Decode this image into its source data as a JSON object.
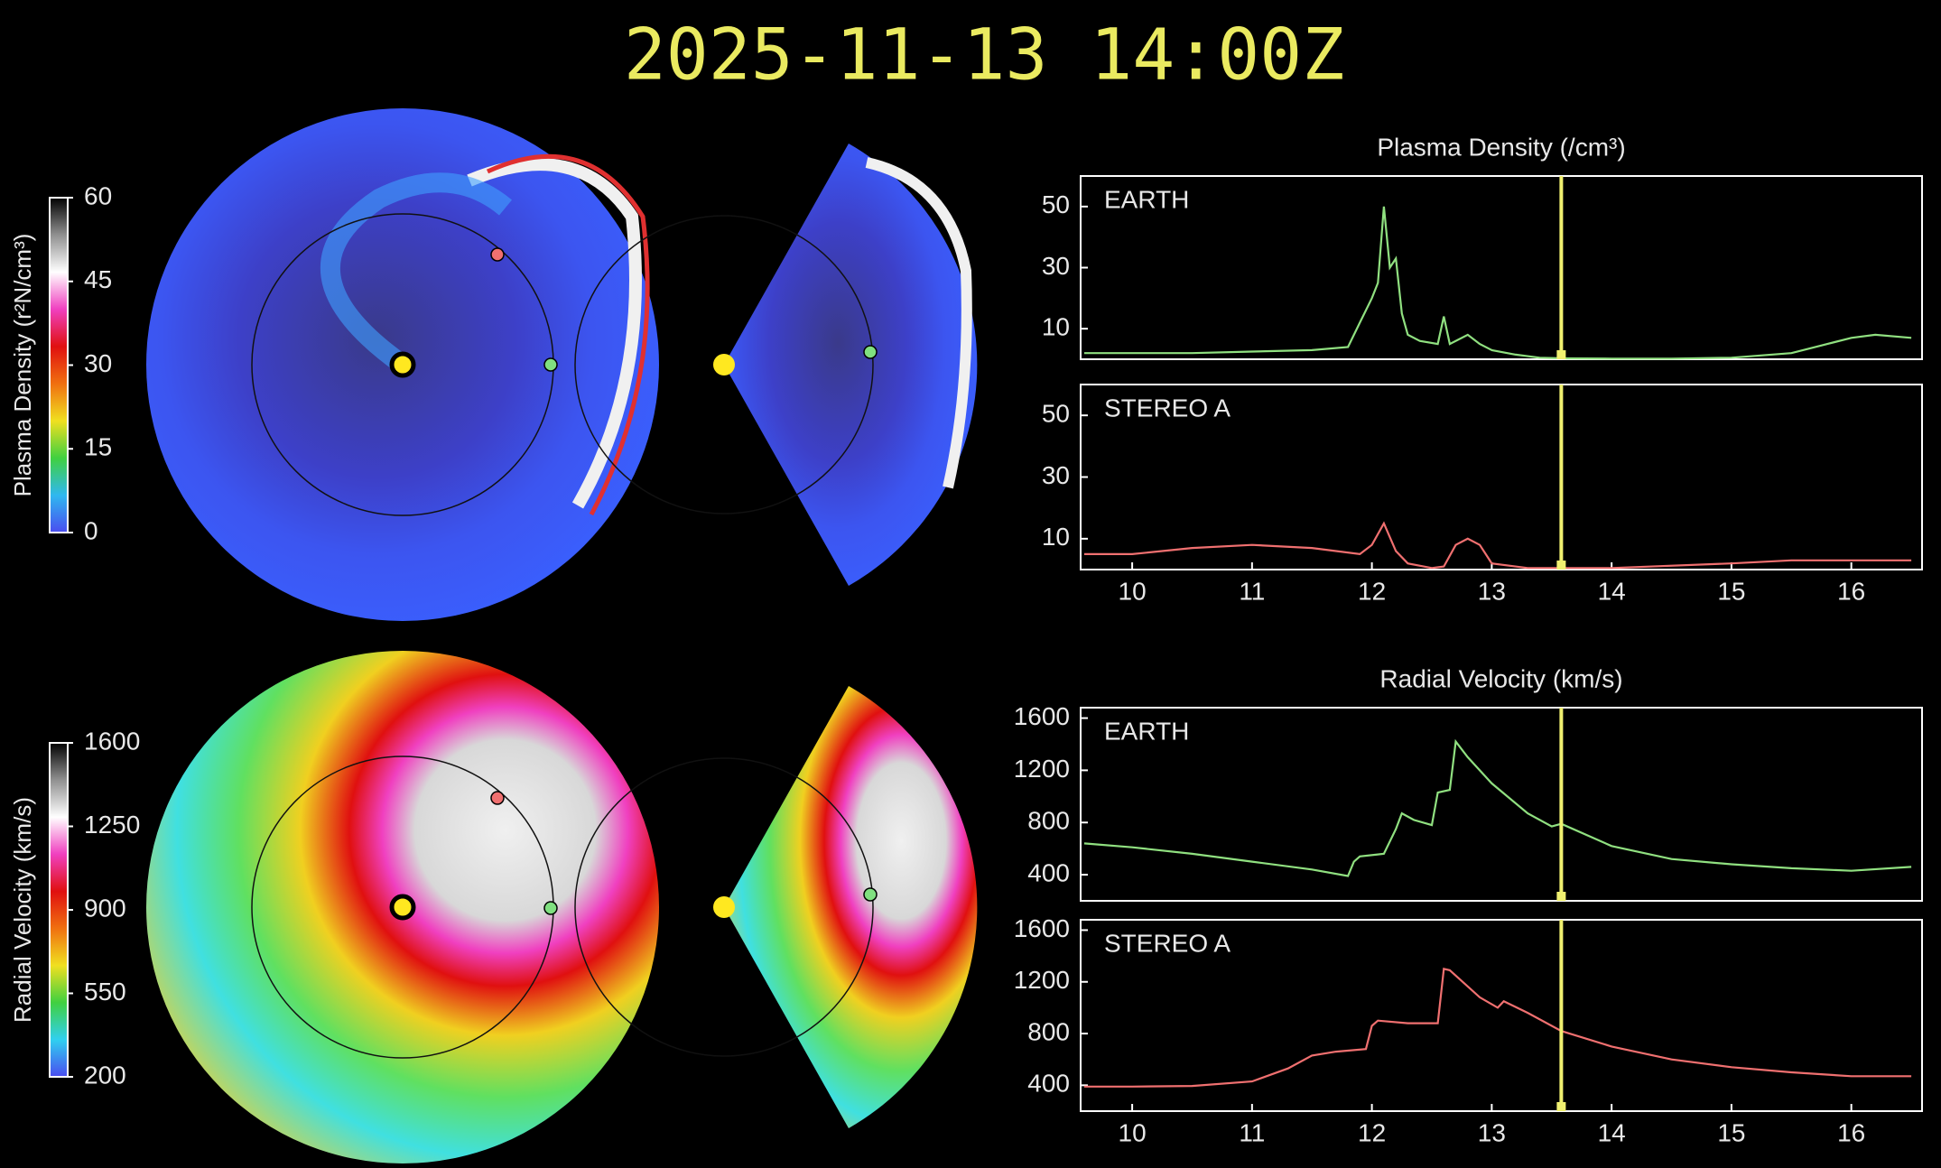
{
  "title": "2025-11-13 14:00Z",
  "chart_data": [
    {
      "type": "colorbar",
      "label": "Plasma Density (r²N/cm³)",
      "ylim": [
        0,
        60
      ],
      "yticks": [
        0,
        15,
        30,
        45,
        60
      ],
      "colors": [
        "#4a4cf0",
        "#2fb8f0",
        "#40d040",
        "#f0e020",
        "#f07010",
        "#e01010",
        "#f040c0",
        "#ffffff",
        "#909090",
        "#000000"
      ]
    },
    {
      "type": "colorbar",
      "label": "Radial Velocity (km/s)",
      "ylim": [
        200,
        1600
      ],
      "yticks": [
        200,
        550,
        900,
        1250,
        1600
      ],
      "colors": [
        "#4a4cf0",
        "#30d0f0",
        "#40d040",
        "#f0e020",
        "#f07010",
        "#e01010",
        "#f040c0",
        "#ffffff",
        "#909090",
        "#000000"
      ]
    },
    {
      "type": "line",
      "title": "Plasma Density (/cm³)",
      "xlim": [
        9.57,
        16.59
      ],
      "ylim": [
        0,
        60
      ],
      "yticks": [
        10,
        30,
        50
      ],
      "marker_x": 13.58,
      "x": [
        9.6,
        10,
        10.5,
        11,
        11.5,
        11.8,
        11.9,
        12.0,
        12.05,
        12.1,
        12.15,
        12.2,
        12.25,
        12.3,
        12.4,
        12.55,
        12.6,
        12.65,
        12.8,
        12.9,
        13.0,
        13.2,
        13.4,
        13.6,
        14,
        14.5,
        15,
        15.5,
        16,
        16.2,
        16.5
      ],
      "series": [
        {
          "name": "EARTH",
          "color": "#90e080",
          "values": [
            2,
            2,
            2,
            2.5,
            3,
            4,
            12,
            20,
            25,
            50,
            30,
            33,
            15,
            8,
            6,
            5,
            14,
            5,
            8,
            5,
            3,
            1.5,
            0.5,
            0.3,
            0.2,
            0.2,
            0.5,
            2,
            7,
            8,
            7
          ]
        }
      ]
    },
    {
      "type": "line",
      "xlim": [
        9.57,
        16.59
      ],
      "ylim": [
        0,
        60
      ],
      "yticks": [
        10,
        30,
        50
      ],
      "xticks": [
        10,
        11,
        12,
        13,
        14,
        15,
        16
      ],
      "marker_x": 13.58,
      "x": [
        9.6,
        10,
        10.5,
        11,
        11.5,
        11.9,
        12.0,
        12.1,
        12.2,
        12.3,
        12.5,
        12.6,
        12.7,
        12.8,
        12.9,
        13.0,
        13.3,
        14,
        15,
        15.5,
        16,
        16.5
      ],
      "series": [
        {
          "name": "STEREO A",
          "color": "#f07070",
          "values": [
            5,
            5,
            7,
            8,
            7,
            5,
            8,
            15,
            6,
            2,
            0.5,
            1,
            8,
            10,
            8,
            2,
            0.5,
            0.5,
            2,
            3,
            3,
            3
          ]
        }
      ]
    },
    {
      "type": "line",
      "title": "Radial Velocity (km/s)",
      "xlim": [
        9.57,
        16.59
      ],
      "ylim": [
        200,
        1680
      ],
      "yticks": [
        400,
        800,
        1200,
        1600
      ],
      "marker_x": 13.58,
      "x": [
        9.6,
        10,
        10.5,
        11,
        11.5,
        11.8,
        11.85,
        11.9,
        12.1,
        12.2,
        12.25,
        12.35,
        12.5,
        12.55,
        12.65,
        12.7,
        12.8,
        13,
        13.3,
        13.5,
        13.58,
        14,
        14.5,
        15,
        15.5,
        16,
        16.5
      ],
      "series": [
        {
          "name": "EARTH",
          "color": "#90e080",
          "values": [
            640,
            610,
            560,
            500,
            440,
            390,
            500,
            540,
            560,
            750,
            870,
            820,
            780,
            1030,
            1050,
            1420,
            1300,
            1100,
            870,
            770,
            790,
            620,
            520,
            480,
            450,
            430,
            460
          ]
        }
      ]
    },
    {
      "type": "line",
      "xlim": [
        9.57,
        16.59
      ],
      "ylim": [
        200,
        1680
      ],
      "yticks": [
        400,
        800,
        1200,
        1600
      ],
      "xticks": [
        10,
        11,
        12,
        13,
        14,
        15,
        16
      ],
      "marker_x": 13.58,
      "x": [
        9.6,
        10,
        10.5,
        11,
        11.3,
        11.5,
        11.7,
        11.95,
        12.0,
        12.05,
        12.3,
        12.55,
        12.6,
        12.65,
        12.9,
        13.05,
        13.1,
        13.3,
        13.58,
        14,
        14.5,
        15,
        15.5,
        16,
        16.5
      ],
      "series": [
        {
          "name": "STEREO A",
          "color": "#f07070",
          "values": [
            390,
            390,
            395,
            430,
            530,
            630,
            660,
            680,
            860,
            900,
            880,
            880,
            1300,
            1290,
            1080,
            1000,
            1050,
            960,
            820,
            700,
            600,
            540,
            500,
            470,
            470
          ]
        }
      ]
    }
  ]
}
